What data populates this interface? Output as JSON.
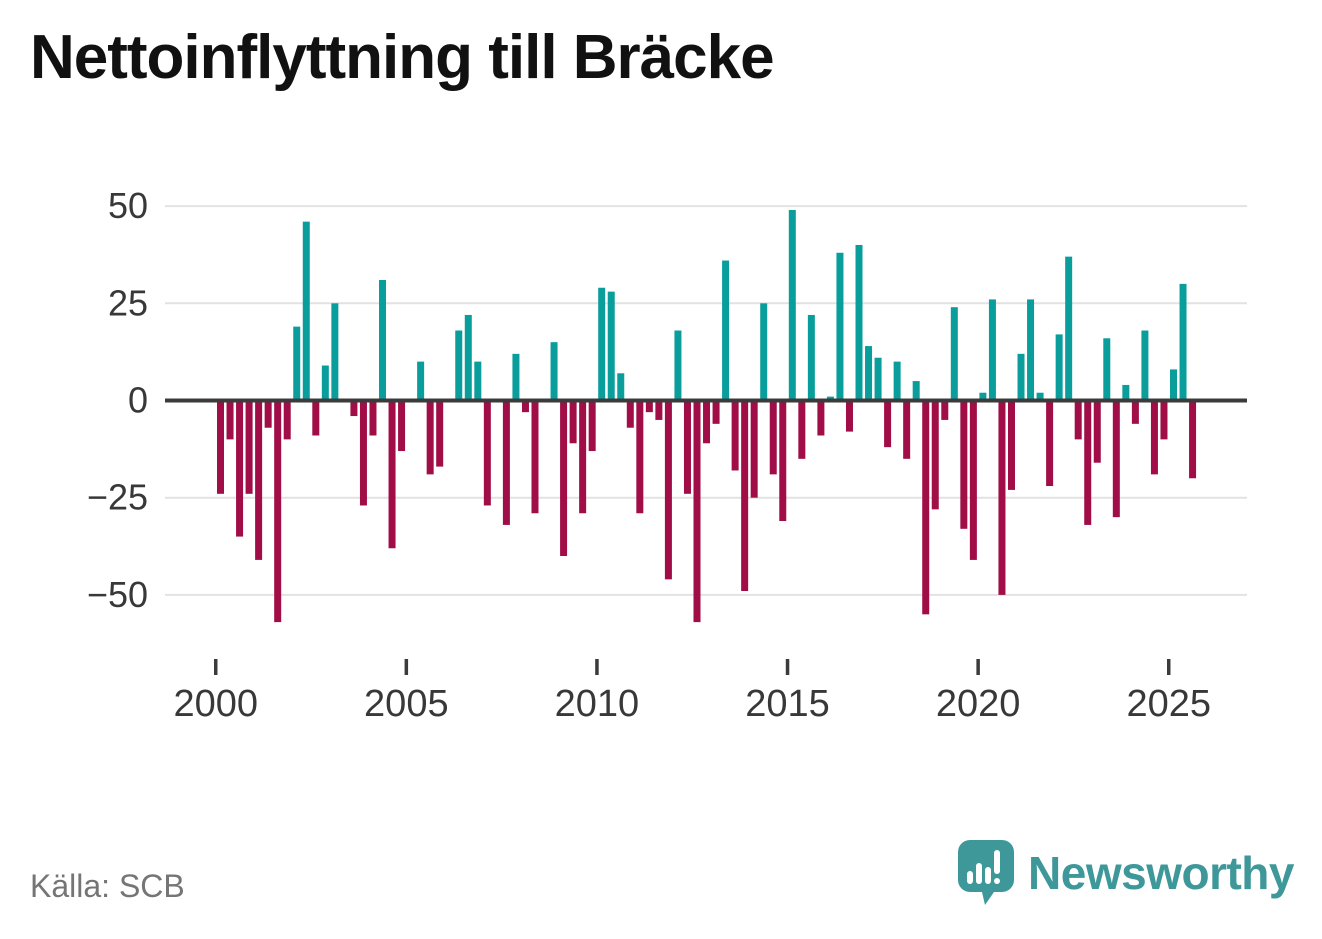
{
  "title": "Nettoinflyttning till Bräcke",
  "source": {
    "label": "Källa: SCB"
  },
  "branding": {
    "name": "Newsworthy",
    "icon": "speech-bubble-bar-chart",
    "color": "#3e989a"
  },
  "colors": {
    "positive_bar": "#099e9b",
    "negative_bar": "#a10d46",
    "gridline": "#e2e2e2",
    "zero_line": "#3b3b3b",
    "axis_text": "#383838",
    "background": "#ffffff"
  },
  "chart_data": {
    "type": "bar",
    "title": "Nettoinflyttning till Bräcke",
    "frequency": "quarterly",
    "start_year": 2000,
    "start_quarter": 1,
    "values": [
      -24,
      -10,
      -35,
      -24,
      -41,
      -7,
      -57,
      -10,
      19,
      46,
      -9,
      9,
      25,
      0,
      -4,
      -27,
      -9,
      31,
      -38,
      -13,
      0,
      10,
      -19,
      -17,
      0,
      18,
      22,
      10,
      -27,
      0,
      -32,
      12,
      -3,
      -29,
      0,
      15,
      -40,
      -11,
      -29,
      -13,
      29,
      28,
      7,
      -7,
      -29,
      -3,
      -5,
      -46,
      18,
      -24,
      -57,
      -11,
      -6,
      36,
      -18,
      -49,
      -25,
      25,
      -19,
      -31,
      49,
      -15,
      22,
      -9,
      1,
      38,
      -8,
      40,
      14,
      11,
      -12,
      10,
      -15,
      5,
      -55,
      -28,
      -5,
      24,
      -33,
      -41,
      2,
      26,
      -50,
      -23,
      12,
      26,
      2,
      -22,
      17,
      37,
      -10,
      -32,
      -16,
      16,
      -30,
      4,
      -6,
      18,
      -19,
      -10,
      8,
      30,
      -20
    ],
    "yticks": [
      50,
      25,
      0,
      -25,
      -50
    ],
    "ytick_labels": [
      "50",
      "25",
      "0",
      "−25",
      "−50"
    ],
    "xtick_years": [
      2000,
      2005,
      2010,
      2015,
      2020,
      2025
    ],
    "xtick_labels": [
      "2000",
      "2005",
      "2010",
      "2015",
      "2020",
      "2025"
    ],
    "ylim": [
      -60,
      52
    ],
    "grid": "horizontal",
    "legend": "none",
    "positive_color": "#099e9b",
    "negative_color": "#a10d46"
  }
}
